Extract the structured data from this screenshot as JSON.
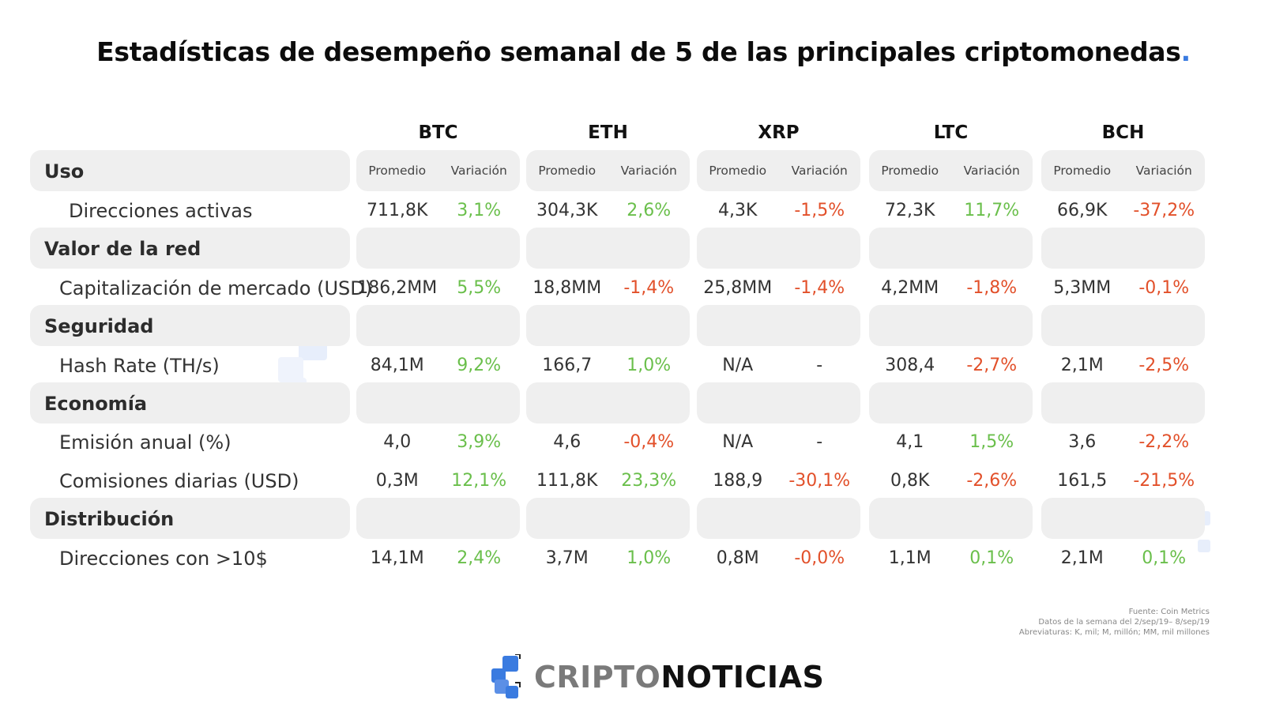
{
  "title": {
    "text": "Estadísticas de desempeño semanal de 5 de las principales criptomonedas",
    "dot": "."
  },
  "coins": [
    "BTC",
    "ETH",
    "XRP",
    "LTC",
    "BCH"
  ],
  "subheaders": {
    "avg": "Promedio",
    "var": "Variación"
  },
  "categories": {
    "uso": "Uso",
    "valor": "Valor de la red",
    "seguridad": "Seguridad",
    "economia": "Economía",
    "distribucion": "Distribución"
  },
  "rows": [
    {
      "label": "Direcciones activas",
      "cells": [
        {
          "avg": "711,8K",
          "var": "3,1%",
          "tone": "pos"
        },
        {
          "avg": "304,3K",
          "var": "2,6%",
          "tone": "pos"
        },
        {
          "avg": "4,3K",
          "var": "-1,5%",
          "tone": "neg"
        },
        {
          "avg": "72,3K",
          "var": "11,7%",
          "tone": "pos"
        },
        {
          "avg": "66,9K",
          "var": "-37,2%",
          "tone": "neg"
        }
      ]
    },
    {
      "label": "Capitalización de mercado (USD)",
      "cells": [
        {
          "avg": "186,2MM",
          "var": "5,5%",
          "tone": "pos"
        },
        {
          "avg": "18,8MM",
          "var": "-1,4%",
          "tone": "neg"
        },
        {
          "avg": "25,8MM",
          "var": "-1,4%",
          "tone": "neg"
        },
        {
          "avg": "4,2MM",
          "var": "-1,8%",
          "tone": "neg"
        },
        {
          "avg": "5,3MM",
          "var": "-0,1%",
          "tone": "neg"
        }
      ]
    },
    {
      "label": "Hash Rate (TH/s)",
      "cells": [
        {
          "avg": "84,1M",
          "var": "9,2%",
          "tone": "pos"
        },
        {
          "avg": "166,7",
          "var": "1,0%",
          "tone": "pos"
        },
        {
          "avg": "N/A",
          "var": "-",
          "tone": "neu"
        },
        {
          "avg": "308,4",
          "var": "-2,7%",
          "tone": "neg"
        },
        {
          "avg": "2,1M",
          "var": "-2,5%",
          "tone": "neg"
        }
      ]
    },
    {
      "label": "Emisión anual (%)",
      "cells": [
        {
          "avg": "4,0",
          "var": "3,9%",
          "tone": "pos"
        },
        {
          "avg": "4,6",
          "var": "-0,4%",
          "tone": "neg"
        },
        {
          "avg": "N/A",
          "var": "-",
          "tone": "neu"
        },
        {
          "avg": "4,1",
          "var": "1,5%",
          "tone": "pos"
        },
        {
          "avg": "3,6",
          "var": "-2,2%",
          "tone": "neg"
        }
      ]
    },
    {
      "label": "Comisiones diarias (USD)",
      "cells": [
        {
          "avg": "0,3M",
          "var": "12,1%",
          "tone": "pos"
        },
        {
          "avg": "111,8K",
          "var": "23,3%",
          "tone": "pos"
        },
        {
          "avg": "188,9",
          "var": "-30,1%",
          "tone": "neg"
        },
        {
          "avg": "0,8K",
          "var": "-2,6%",
          "tone": "neg"
        },
        {
          "avg": "161,5",
          "var": "-21,5%",
          "tone": "neg"
        }
      ]
    },
    {
      "label": "Direcciones con >10$",
      "cells": [
        {
          "avg": "14,1M",
          "var": "2,4%",
          "tone": "pos"
        },
        {
          "avg": "3,7M",
          "var": "1,0%",
          "tone": "pos"
        },
        {
          "avg": "0,8M",
          "var": "-0,0%",
          "tone": "neg"
        },
        {
          "avg": "1,1M",
          "var": "0,1%",
          "tone": "pos"
        },
        {
          "avg": "2,1M",
          "var": "0,1%",
          "tone": "pos"
        }
      ]
    }
  ],
  "notes": {
    "source": "Fuente: Coin Metrics",
    "period": "Datos de la semana del 2/sep/19– 8/sep/19",
    "abbr": "Abreviaturas:  K, mil; M, millón; MM, mil millones"
  },
  "logo": {
    "part1": "CRIPTO",
    "part2": "NOTICIAS"
  },
  "colors": {
    "positive": "#6abf4b",
    "negative": "#e2502a",
    "accent": "#3a7be0",
    "band": "#efefef"
  }
}
